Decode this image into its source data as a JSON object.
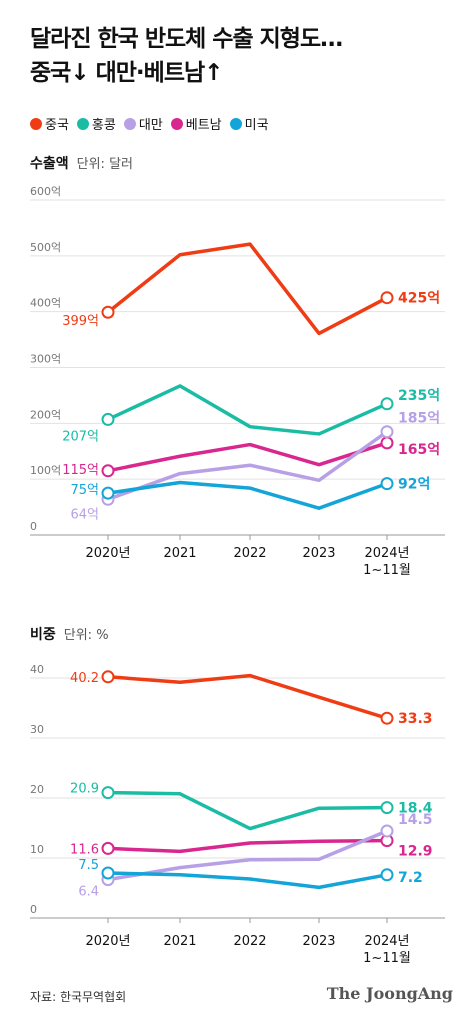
{
  "title": {
    "line1": "달라진 한국 반도체 수출 지형도…",
    "line2": "중국↓ 대만·베트남↑"
  },
  "colors": {
    "china": "#f03c14",
    "hongkong": "#1bbca4",
    "taiwan": "#b7a0e6",
    "vietnam": "#d8278e",
    "usa": "#13a4d8"
  },
  "legend": [
    "중국",
    "홍콩",
    "대만",
    "베트남",
    "미국"
  ],
  "export_section": {
    "label": "수출액",
    "unit": "단위: 달러"
  },
  "share_section": {
    "label": "비중",
    "unit": "단위: %"
  },
  "footer": {
    "source": "자료: 한국무역협회",
    "brand": "The JoongAng"
  },
  "chart_data": [
    {
      "type": "line",
      "ylabel": "수출액",
      "ylim": [
        0,
        600
      ],
      "y_ticks": [
        "0",
        "100억",
        "200억",
        "300억",
        "400억",
        "500억",
        "600억"
      ],
      "categories": [
        "2020년",
        "2021",
        "2022",
        "2023",
        "2024년\n1~11월"
      ],
      "series": [
        {
          "name": "중국",
          "key": "china",
          "values": [
            399,
            502,
            521,
            361,
            425
          ],
          "start_label": "399억",
          "end_label": "425억"
        },
        {
          "name": "홍콩",
          "key": "hongkong",
          "values": [
            207,
            267,
            194,
            181,
            235
          ],
          "start_label": "207억",
          "end_label": "235억"
        },
        {
          "name": "베트남",
          "key": "vietnam",
          "values": [
            115,
            141,
            162,
            126,
            165
          ],
          "start_label": "115억",
          "end_label": "165억"
        },
        {
          "name": "대만",
          "key": "taiwan",
          "values": [
            64,
            110,
            125,
            98,
            185
          ],
          "start_label": "64억",
          "end_label": "185억"
        },
        {
          "name": "미국",
          "key": "usa",
          "values": [
            75,
            94,
            84,
            48,
            92
          ],
          "start_label": "75억",
          "end_label": "92억"
        }
      ]
    },
    {
      "type": "line",
      "ylabel": "비중",
      "ylim": [
        0,
        45
      ],
      "y_ticks": [
        "0",
        "10",
        "20",
        "30",
        "40"
      ],
      "categories": [
        "2020년",
        "2021",
        "2022",
        "2023",
        "2024년\n1~11월"
      ],
      "series": [
        {
          "name": "중국",
          "key": "china",
          "values": [
            40.2,
            39.3,
            40.4,
            36.8,
            33.3
          ],
          "start_label": "40.2",
          "end_label": "33.3"
        },
        {
          "name": "홍콩",
          "key": "hongkong",
          "values": [
            20.9,
            20.7,
            14.9,
            18.3,
            18.4
          ],
          "start_label": "20.9",
          "end_label": "18.4"
        },
        {
          "name": "베트남",
          "key": "vietnam",
          "values": [
            11.6,
            11.1,
            12.5,
            12.8,
            12.9
          ],
          "start_label": "11.6",
          "end_label": "12.9"
        },
        {
          "name": "대만",
          "key": "taiwan",
          "values": [
            6.4,
            8.4,
            9.7,
            9.8,
            14.5
          ],
          "start_label": "6.4",
          "end_label": "14.5"
        },
        {
          "name": "미국",
          "key": "usa",
          "values": [
            7.5,
            7.2,
            6.5,
            5.1,
            7.2
          ],
          "start_label": "7.5",
          "end_label": "7.2"
        }
      ]
    }
  ]
}
